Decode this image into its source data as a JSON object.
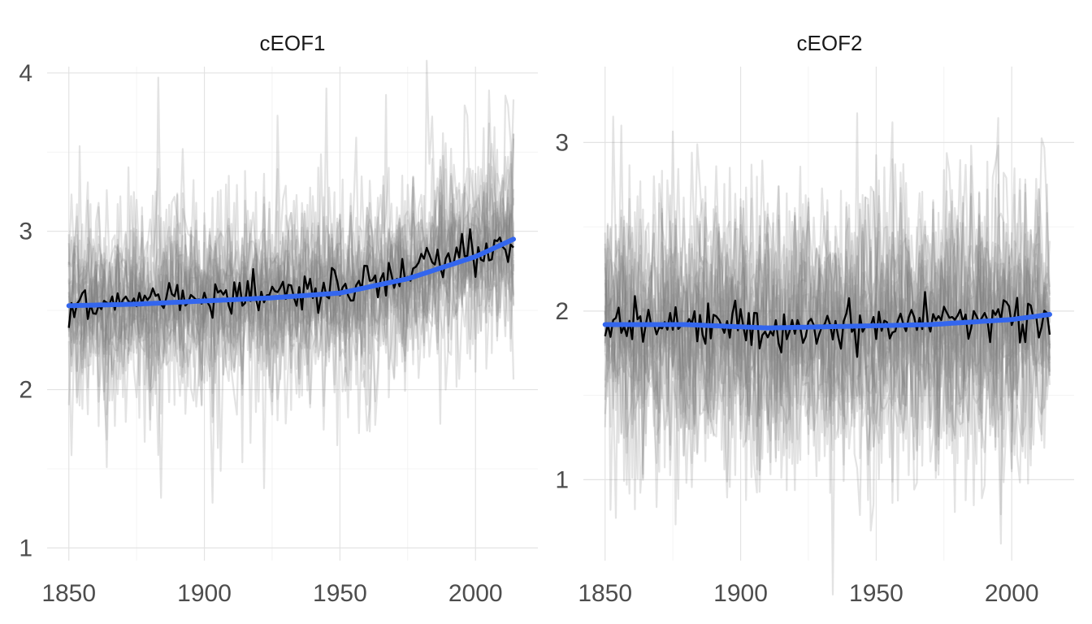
{
  "chart_data": [
    {
      "type": "line",
      "title": "cEOF1",
      "xlabel": "",
      "ylabel": "",
      "xlim": [
        1842,
        2023
      ],
      "ylim": [
        0.92,
        4.04
      ],
      "x_ticks": [
        1850,
        1900,
        1950,
        2000
      ],
      "x_tick_labels": [
        "1850",
        "1900",
        "1950",
        "2000"
      ],
      "x_minor": [
        1875,
        1925,
        1975
      ],
      "y_ticks": [
        1,
        2,
        3,
        4
      ],
      "y_tick_labels": [
        "1",
        "2",
        "3",
        "4"
      ],
      "y_minor": [
        1.5,
        2.5,
        3.5
      ],
      "grid": true,
      "legend": "none",
      "ensemble": {
        "x_range": [
          1850,
          2014
        ],
        "member_count": 25,
        "color": "#7f7f7f",
        "opacity": 0.22,
        "center": [
          [
            1850,
            2.53
          ],
          [
            1900,
            2.56
          ],
          [
            1950,
            2.6
          ],
          [
            2014,
            2.95
          ]
        ],
        "spread_sd": 0.3
      },
      "series": [
        {
          "role": "observed",
          "color": "#000000",
          "x_range": [
            1850,
            2014
          ],
          "center": [
            [
              1850,
              2.55
            ],
            [
              1900,
              2.57
            ],
            [
              1950,
              2.62
            ],
            [
              2014,
              2.95
            ]
          ],
          "noise_sd": 0.06
        },
        {
          "role": "trend",
          "color": "#3366ee",
          "x": [
            1850,
            1875,
            1900,
            1925,
            1950,
            1975,
            2000,
            2014
          ],
          "y": [
            2.53,
            2.54,
            2.56,
            2.58,
            2.61,
            2.7,
            2.84,
            2.95
          ]
        }
      ]
    },
    {
      "type": "line",
      "title": "cEOF2",
      "xlabel": "",
      "ylabel": "",
      "xlim": [
        1842,
        2023
      ],
      "ylim": [
        0.52,
        3.45
      ],
      "x_ticks": [
        1850,
        1900,
        1950,
        2000
      ],
      "x_tick_labels": [
        "1850",
        "1900",
        "1950",
        "2000"
      ],
      "x_minor": [
        1875,
        1925,
        1975
      ],
      "y_ticks": [
        1,
        2,
        3
      ],
      "y_tick_labels": [
        "1",
        "2",
        "3"
      ],
      "y_minor": [
        0.5,
        1.5,
        2.5
      ],
      "grid": true,
      "legend": "none",
      "ensemble": {
        "x_range": [
          1850,
          2014
        ],
        "member_count": 25,
        "color": "#7f7f7f",
        "opacity": 0.22,
        "center": [
          [
            1850,
            1.92
          ],
          [
            1920,
            1.9
          ],
          [
            1950,
            1.91
          ],
          [
            2014,
            1.98
          ]
        ],
        "spread_sd": 0.32
      },
      "series": [
        {
          "role": "observed",
          "color": "#000000",
          "x_range": [
            1850,
            2014
          ],
          "center": [
            [
              1850,
              1.92
            ],
            [
              1920,
              1.9
            ],
            [
              1950,
              1.92
            ],
            [
              2014,
              1.97
            ]
          ],
          "noise_sd": 0.07
        },
        {
          "role": "trend",
          "color": "#3366ee",
          "x": [
            1850,
            1880,
            1910,
            1940,
            1970,
            2000,
            2014
          ],
          "y": [
            1.92,
            1.92,
            1.9,
            1.91,
            1.92,
            1.95,
            1.98
          ]
        }
      ]
    }
  ]
}
